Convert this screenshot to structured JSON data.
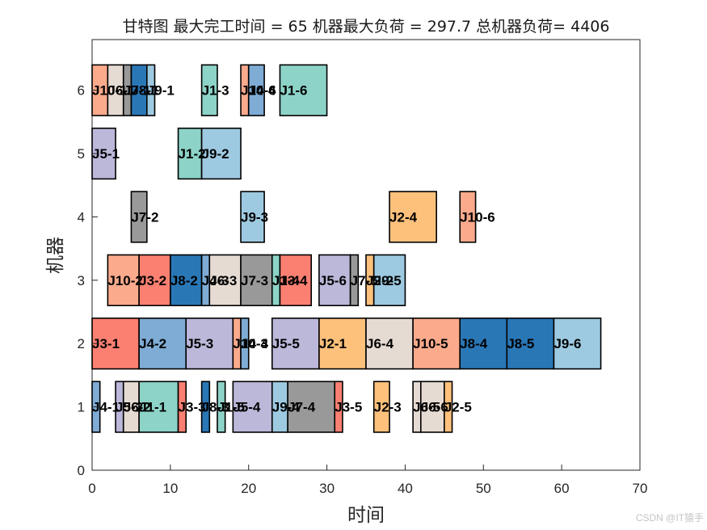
{
  "chart_data": {
    "type": "gantt",
    "title": "甘特图 最大完工时间 = 65 机器最大负荷 = 297.7 总机器负荷= 4406",
    "xlabel": "时间",
    "ylabel": "机器",
    "xlim": [
      0,
      70
    ],
    "ylim": [
      0,
      6.8
    ],
    "xticks": [
      0,
      10,
      20,
      30,
      40,
      50,
      60,
      70
    ],
    "yticks": [
      0,
      1,
      2,
      3,
      4,
      5,
      6
    ],
    "makespan": 65,
    "max_machine_load": 297.7,
    "total_machine_load": 4406,
    "bar_height": 0.8,
    "job_colors": {
      "J1": "#8DD3C7",
      "J2": "#FDC17C",
      "J3": "#FB8072",
      "J4": "#7EACD5",
      "J5": "#BCB8DA",
      "J6": "#E6DBD3",
      "J7": "#999999",
      "J8": "#2A77B6",
      "J9": "#9ECAE1",
      "J10": "#FBAA8C"
    },
    "tasks": [
      {
        "machine": 6,
        "job": "J10",
        "label": "J10-1",
        "start": 0,
        "end": 2
      },
      {
        "machine": 6,
        "job": "J6",
        "label": "J6-1",
        "start": 2,
        "end": 4
      },
      {
        "machine": 6,
        "job": "J7",
        "label": "J7-1",
        "start": 4,
        "end": 5
      },
      {
        "machine": 6,
        "job": "J8",
        "label": "J8-1",
        "start": 5,
        "end": 7
      },
      {
        "machine": 6,
        "job": "J9",
        "label": "J9-1",
        "start": 7,
        "end": 8
      },
      {
        "machine": 6,
        "job": "J1",
        "label": "J1-3",
        "start": 14,
        "end": 16
      },
      {
        "machine": 6,
        "job": "J10",
        "label": "J10-4",
        "start": 19,
        "end": 20
      },
      {
        "machine": 6,
        "job": "J4",
        "label": "J4-6",
        "start": 20,
        "end": 22
      },
      {
        "machine": 6,
        "job": "J1",
        "label": "J1-6",
        "start": 24,
        "end": 30
      },
      {
        "machine": 5,
        "job": "J5",
        "label": "J5-1",
        "start": 0,
        "end": 3
      },
      {
        "machine": 5,
        "job": "J1",
        "label": "J1-2",
        "start": 11,
        "end": 14
      },
      {
        "machine": 5,
        "job": "J9",
        "label": "J9-2",
        "start": 14,
        "end": 19
      },
      {
        "machine": 4,
        "job": "J7",
        "label": "J7-2",
        "start": 5,
        "end": 7
      },
      {
        "machine": 4,
        "job": "J9",
        "label": "J9-3",
        "start": 19,
        "end": 22
      },
      {
        "machine": 4,
        "job": "J2",
        "label": "J2-4",
        "start": 38,
        "end": 44
      },
      {
        "machine": 4,
        "job": "J10",
        "label": "J10-6",
        "start": 47,
        "end": 49
      },
      {
        "machine": 3,
        "job": "J10",
        "label": "J10-2",
        "start": 2,
        "end": 6
      },
      {
        "machine": 3,
        "job": "J3",
        "label": "J3-2",
        "start": 6,
        "end": 10
      },
      {
        "machine": 3,
        "job": "J8",
        "label": "J8-2",
        "start": 10,
        "end": 14
      },
      {
        "machine": 3,
        "job": "J4",
        "label": "J4-3",
        "start": 14,
        "end": 15
      },
      {
        "machine": 3,
        "job": "J6",
        "label": "J6-3",
        "start": 15,
        "end": 19
      },
      {
        "machine": 3,
        "job": "J7",
        "label": "J7-3",
        "start": 19,
        "end": 23
      },
      {
        "machine": 3,
        "job": "J1",
        "label": "J1-4",
        "start": 23,
        "end": 24
      },
      {
        "machine": 3,
        "job": "J3",
        "label": "J3-4",
        "start": 24,
        "end": 28
      },
      {
        "machine": 3,
        "job": "J5",
        "label": "J5-6",
        "start": 29,
        "end": 33
      },
      {
        "machine": 3,
        "job": "J7",
        "label": "J7-5",
        "start": 33,
        "end": 34
      },
      {
        "machine": 3,
        "job": "J2",
        "label": "J2-2",
        "start": 35,
        "end": 36
      },
      {
        "machine": 3,
        "job": "J9",
        "label": "J9-5",
        "start": 36,
        "end": 40
      },
      {
        "machine": 2,
        "job": "J3",
        "label": "J3-1",
        "start": 0,
        "end": 6
      },
      {
        "machine": 2,
        "job": "J4",
        "label": "J4-2",
        "start": 6,
        "end": 12
      },
      {
        "machine": 2,
        "job": "J5",
        "label": "J5-3",
        "start": 12,
        "end": 18
      },
      {
        "machine": 2,
        "job": "J10",
        "label": "J10-3",
        "start": 18,
        "end": 19
      },
      {
        "machine": 2,
        "job": "J4",
        "label": "J4-4",
        "start": 19,
        "end": 20
      },
      {
        "machine": 2,
        "job": "J5",
        "label": "J5-5",
        "start": 23,
        "end": 29
      },
      {
        "machine": 2,
        "job": "J2",
        "label": "J2-1",
        "start": 29,
        "end": 35
      },
      {
        "machine": 2,
        "job": "J6",
        "label": "J6-4",
        "start": 35,
        "end": 41
      },
      {
        "machine": 2,
        "job": "J10",
        "label": "J10-5",
        "start": 41,
        "end": 47
      },
      {
        "machine": 2,
        "job": "J8",
        "label": "J8-4",
        "start": 47,
        "end": 53
      },
      {
        "machine": 2,
        "job": "J8",
        "label": "J8-5",
        "start": 53,
        "end": 59
      },
      {
        "machine": 2,
        "job": "J9",
        "label": "J9-6",
        "start": 59,
        "end": 65
      },
      {
        "machine": 1,
        "job": "J4",
        "label": "J4-1",
        "start": 0,
        "end": 1
      },
      {
        "machine": 1,
        "job": "J5",
        "label": "J5-2",
        "start": 3,
        "end": 4
      },
      {
        "machine": 1,
        "job": "J6",
        "label": "J6-2",
        "start": 4,
        "end": 6
      },
      {
        "machine": 1,
        "job": "J1",
        "label": "J1-1",
        "start": 6,
        "end": 11
      },
      {
        "machine": 1,
        "job": "J3",
        "label": "J3-3",
        "start": 11,
        "end": 12
      },
      {
        "machine": 1,
        "job": "J8",
        "label": "J8-3",
        "start": 14,
        "end": 15
      },
      {
        "machine": 1,
        "job": "J1",
        "label": "J1-5",
        "start": 16,
        "end": 17
      },
      {
        "machine": 1,
        "job": "J5",
        "label": "J5-4",
        "start": 18,
        "end": 23
      },
      {
        "machine": 1,
        "job": "J9",
        "label": "J9-4",
        "start": 23,
        "end": 25
      },
      {
        "machine": 1,
        "job": "J7",
        "label": "J7-4",
        "start": 25,
        "end": 31
      },
      {
        "machine": 1,
        "job": "J3",
        "label": "J3-5",
        "start": 31,
        "end": 32
      },
      {
        "machine": 1,
        "job": "J2",
        "label": "J2-3",
        "start": 36,
        "end": 38
      },
      {
        "machine": 1,
        "job": "J6",
        "label": "J6-5",
        "start": 41,
        "end": 42
      },
      {
        "machine": 1,
        "job": "J6",
        "label": "J6-6",
        "start": 42,
        "end": 45
      },
      {
        "machine": 1,
        "job": "J2",
        "label": "J2-5",
        "start": 45,
        "end": 46
      }
    ]
  },
  "watermark": "CSDN @IT猿手"
}
